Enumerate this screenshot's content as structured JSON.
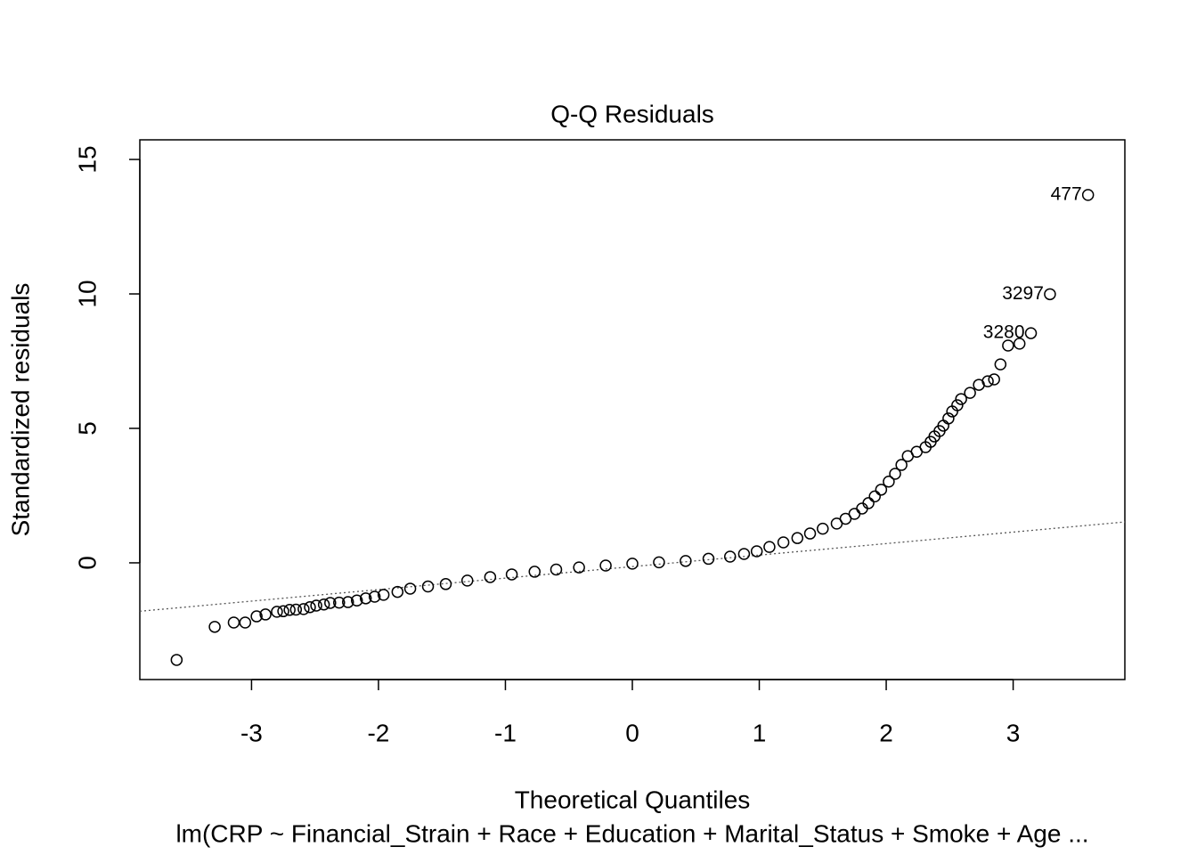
{
  "chart_data": {
    "type": "scatter",
    "title": "Q-Q Residuals",
    "x_label": "Theoretical Quantiles",
    "y_label": "Standardized residuals",
    "subtitle": "lm(CRP ~ Financial_Strain + Race + Education + Marital_Status + Smoke + Age ...",
    "x": [
      -3.59,
      -3.29,
      -3.14,
      -3.05,
      -2.96,
      -2.89,
      -2.8,
      -2.75,
      -2.7,
      -2.65,
      -2.59,
      -2.54,
      -2.49,
      -2.43,
      -2.38,
      -2.31,
      -2.24,
      -2.17,
      -2.1,
      -2.03,
      -1.96,
      -1.85,
      -1.75,
      -1.61,
      -1.47,
      -1.3,
      -1.12,
      -0.95,
      -0.77,
      -0.6,
      -0.42,
      -0.21,
      0.0,
      0.21,
      0.42,
      0.6,
      0.77,
      0.88,
      0.98,
      1.08,
      1.19,
      1.3,
      1.4,
      1.5,
      1.61,
      1.68,
      1.75,
      1.81,
      1.86,
      1.91,
      1.96,
      2.02,
      2.07,
      2.12,
      2.17,
      2.24,
      2.31,
      2.35,
      2.38,
      2.42,
      2.45,
      2.49,
      2.52,
      2.56,
      2.59,
      2.66,
      2.73,
      2.8,
      2.85,
      2.9,
      2.96,
      3.05,
      3.14,
      3.29,
      3.59
    ],
    "values": [
      -3.61,
      -2.38,
      -2.22,
      -2.22,
      -1.99,
      -1.92,
      -1.82,
      -1.8,
      -1.75,
      -1.74,
      -1.72,
      -1.65,
      -1.59,
      -1.55,
      -1.49,
      -1.48,
      -1.46,
      -1.4,
      -1.32,
      -1.26,
      -1.19,
      -1.08,
      -0.96,
      -0.88,
      -0.79,
      -0.66,
      -0.53,
      -0.43,
      -0.33,
      -0.25,
      -0.17,
      -0.1,
      -0.03,
      0.02,
      0.07,
      0.15,
      0.23,
      0.33,
      0.43,
      0.59,
      0.76,
      0.92,
      1.09,
      1.27,
      1.46,
      1.64,
      1.82,
      2.02,
      2.22,
      2.47,
      2.72,
      3.02,
      3.31,
      3.64,
      3.97,
      4.13,
      4.3,
      4.5,
      4.7,
      4.9,
      5.1,
      5.37,
      5.63,
      5.86,
      6.09,
      6.32,
      6.62,
      6.75,
      6.82,
      7.38,
      8.08,
      8.15,
      8.54,
      9.99,
      13.68
    ],
    "reference_line": {
      "x": [
        -3.88,
        3.88
      ],
      "y": [
        -1.8,
        1.52
      ]
    },
    "annotations": [
      {
        "text": "477",
        "x": 3.59,
        "y": 13.68
      },
      {
        "text": "3297",
        "x": 3.29,
        "y": 9.99
      },
      {
        "text": "3280",
        "x": 3.14,
        "y": 8.54
      }
    ],
    "xlim": [
      -3.88,
      3.88
    ],
    "ylim": [
      -4.34,
      15.73
    ],
    "xticks": [
      -3,
      -2,
      -1,
      0,
      1,
      2,
      3
    ],
    "yticks": [
      0,
      5,
      10,
      15
    ]
  }
}
